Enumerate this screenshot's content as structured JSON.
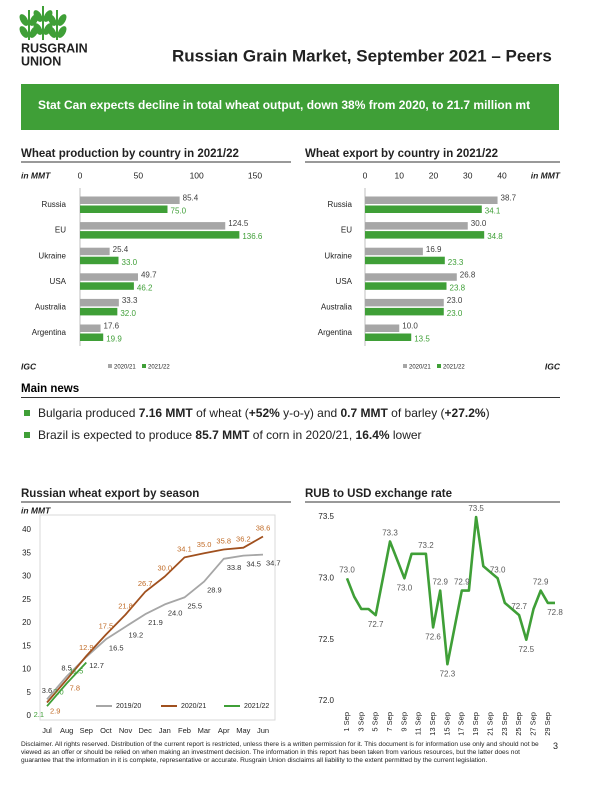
{
  "header": {
    "logo": [
      "RUSGRAIN",
      "UNION"
    ],
    "title": "Russian Grain Market, September 2021 – Peers"
  },
  "banner": "Stat Can expects decline in total wheat output, down 38% from 2020, to 21.7 million mt",
  "chart_data": [
    {
      "type": "hbar",
      "title": "Wheat production by country in 2021/22",
      "axis_label": "in MMT",
      "source": "IGC",
      "categories": [
        "Russia",
        "EU",
        "Ukraine",
        "USA",
        "Australia",
        "Argentina"
      ],
      "series": [
        {
          "name": "2020/21",
          "color": "#a6a6a6",
          "label_color": "#404040",
          "values": [
            85.4,
            124.5,
            25.4,
            49.7,
            33.3,
            17.6
          ],
          "value_labels": [
            "85.4",
            "124.5",
            "25.4",
            "49.7",
            "33.3",
            "17.6"
          ]
        },
        {
          "name": "2021/22",
          "color": "#3f9f37",
          "label_color": "#3f9f37",
          "values": [
            75.0,
            136.6,
            33.0,
            46.2,
            32.0,
            19.9
          ],
          "value_labels": [
            "75.0",
            "136.6",
            "33.0",
            "46.2",
            "32.0",
            "19.9"
          ]
        }
      ],
      "xlim": [
        0,
        150
      ],
      "xticks": [
        0,
        50,
        100,
        150
      ],
      "grid": false
    },
    {
      "type": "hbar",
      "title": "Wheat export by country in 2021/22",
      "axis_label": "in MMT",
      "source": "IGC",
      "categories": [
        "Russia",
        "EU",
        "Ukraine",
        "USA",
        "Australia",
        "Argentina"
      ],
      "series": [
        {
          "name": "2020/21",
          "color": "#a6a6a6",
          "label_color": "#404040",
          "values": [
            38.7,
            30.0,
            16.9,
            26.8,
            23.0,
            10.0
          ],
          "value_labels": [
            "38.7",
            "30.0",
            "16.9",
            "26.8",
            "23.0",
            "10.0"
          ]
        },
        {
          "name": "2021/22",
          "color": "#3f9f37",
          "label_color": "#3f9f37",
          "values": [
            34.1,
            34.8,
            23.3,
            23.8,
            23.0,
            13.5
          ],
          "value_labels": [
            "34.1",
            "34.8",
            "23.3",
            "23.8",
            "23.0",
            "13.5"
          ]
        }
      ],
      "xlim": [
        0,
        40
      ],
      "xticks": [
        0,
        10,
        20,
        30,
        40
      ],
      "grid": false
    },
    {
      "type": "line",
      "title": "Russian wheat export by season",
      "axis_label": "in MMT",
      "categories": [
        "Jul",
        "Aug",
        "Sep",
        "Oct",
        "Nov",
        "Dec",
        "Jan",
        "Feb",
        "Mar",
        "Apr",
        "May",
        "Jun"
      ],
      "series": [
        {
          "name": "2019/20",
          "color": "#a6a6a6",
          "label_color": "#333333",
          "values": [
            3.6,
            8.5,
            12.7,
            16.5,
            19.2,
            21.9,
            24.0,
            25.5,
            28.9,
            33.8,
            34.5,
            34.7
          ],
          "value_labels": [
            "3.6",
            "8.5",
            "12.7",
            "16.5",
            "19.2",
            "21.9",
            "24.0",
            "25.5",
            "28.9",
            "33.8",
            "34.5",
            "34.7"
          ]
        },
        {
          "name": "2020/21",
          "color": "#a0501e",
          "label_color": "#c06a25",
          "values": [
            2.9,
            7.8,
            12.9,
            17.5,
            21.8,
            26.7,
            30.0,
            34.1,
            35.0,
            35.8,
            36.2,
            38.6
          ],
          "value_labels": [
            "2.9",
            "7.8",
            "12.9",
            "17.5",
            "21.8",
            "26.7",
            "30.0",
            "34.1",
            "35.0",
            "35.8",
            "36.2",
            "38.6"
          ]
        },
        {
          "name": "2021/22",
          "color": "#3f9f37",
          "label_color": "#3f9f37",
          "values": [
            2.1,
            7.0,
            11.5,
            null,
            null,
            null,
            null,
            null,
            null,
            null,
            null,
            null
          ],
          "value_labels": [
            "2.1",
            "7.0",
            "11.5",
            null,
            null,
            null,
            null,
            null,
            null,
            null,
            null,
            null
          ]
        }
      ],
      "ylim": [
        0,
        40
      ],
      "yticks": [
        0,
        5,
        10,
        15,
        20,
        25,
        30,
        35,
        40
      ],
      "grid": false
    },
    {
      "type": "line",
      "title": "RUB to USD exchange rate",
      "categories": [
        "1 Sep",
        null,
        "3 Sep",
        null,
        "5 Sep",
        null,
        "7 Sep",
        null,
        "9 Sep",
        null,
        "11 Sep",
        null,
        "13 Sep",
        null,
        "15 Sep",
        null,
        "17 Sep",
        null,
        "19 Sep",
        null,
        "21 Sep",
        null,
        "23 Sep",
        null,
        "25 Sep",
        null,
        "27 Sep",
        null,
        "29 Sep",
        null
      ],
      "series": [
        {
          "color": "#3f9f37",
          "label_color": "#595959",
          "values": [
            73.0,
            72.85,
            72.75,
            72.75,
            72.7,
            73.0,
            73.3,
            73.15,
            73.0,
            73.2,
            73.2,
            73.2,
            72.6,
            72.9,
            72.3,
            72.6,
            72.9,
            72.9,
            73.5,
            73.1,
            73.05,
            73.0,
            72.8,
            72.75,
            72.7,
            72.5,
            72.75,
            72.9,
            72.8,
            72.8
          ],
          "value_labels": [
            "73.0",
            null,
            null,
            null,
            "72.7",
            null,
            "73.3",
            null,
            "73.0",
            null,
            null,
            "73.2",
            "72.6",
            "72.9",
            "72.3",
            null,
            "72.9",
            null,
            "73.5",
            null,
            null,
            "73.0",
            null,
            null,
            "72.7",
            "72.5",
            null,
            "72.9",
            null,
            "72.8"
          ]
        }
      ],
      "ylim": [
        72.0,
        73.5
      ],
      "yticks": [
        {
          "value": 72.0,
          "label": "72.0"
        },
        72.5,
        {
          "value": 73.0,
          "label": "73.0"
        },
        73.5
      ],
      "grid": false
    }
  ],
  "news": {
    "title": "Main news",
    "items": [
      [
        {
          "text": "Bulgaria produced "
        },
        {
          "text": "7.16 MMT",
          "bold": true
        },
        {
          "text": " of wheat ("
        },
        {
          "text": "+52%",
          "bold": true
        },
        {
          "text": " y-o-y) and "
        },
        {
          "text": "0.7 MMT",
          "bold": true
        },
        {
          "text": " of barley ("
        },
        {
          "text": "+27.2%",
          "bold": true
        },
        {
          "text": ")"
        }
      ],
      [
        {
          "text": "Brazil is expected to produce "
        },
        {
          "text": "85.7 MMT",
          "bold": true
        },
        {
          "text": " of corn in 2020/21, "
        },
        {
          "text": "16.4%",
          "bold": true
        },
        {
          "text": " lower"
        }
      ]
    ]
  },
  "disclaimer": "Disclaimer. All rights reserved. Distribution of the current report is restricted, unless there is a written permission for it. This document is for information use only and should not be viewed as an offer or should be relied on when making an investment decision. The information in this report has been taken from various resources, but the latter does not guarantee that the information in it is complete, representative or accurate. Rusgrain Union disclaims all liability to the extent permitted by the current legislation.",
  "page_number": "3"
}
